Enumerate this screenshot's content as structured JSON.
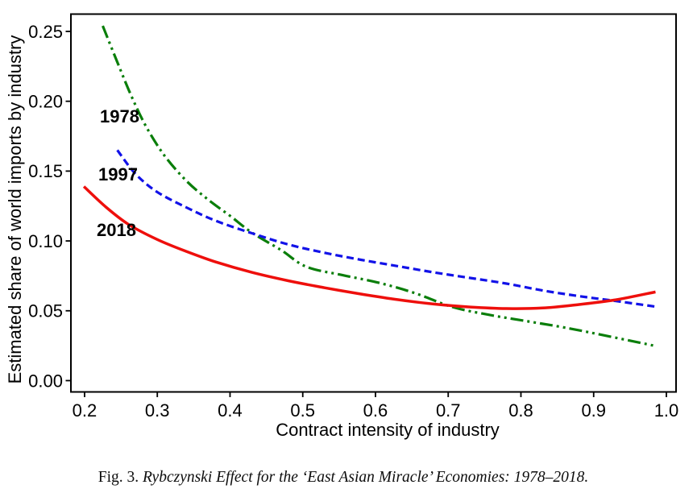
{
  "figure": {
    "caption_prefix": "Fig. 3. ",
    "caption_title": "Rybczynski Effect for the ‘East Asian Miracle’ Economies: 1978–2018."
  },
  "chart_data": {
    "type": "line",
    "title": "",
    "xlabel": "Contract intensity of industry",
    "ylabel": "Estimated share of world imports by industry",
    "xlim": [
      0.1812,
      1.0133
    ],
    "ylim": [
      -0.0081,
      0.2624
    ],
    "grid": false,
    "legend_position": "inline colored year labels inside plot, upper left",
    "x_ticks": [
      0.2,
      0.3,
      0.4,
      0.5,
      0.6,
      0.7,
      0.8,
      0.9,
      1.0
    ],
    "x_tick_labels": [
      "0.2",
      "0.3",
      "0.4",
      "0.5",
      "0.6",
      "0.7",
      "0.8",
      "0.9",
      "1.0"
    ],
    "y_ticks": [
      0.0,
      0.05,
      0.1,
      0.15,
      0.2,
      0.25
    ],
    "y_tick_labels": [
      "0.00",
      "0.05",
      "0.10",
      "0.15",
      "0.20",
      "0.25"
    ],
    "series": [
      {
        "name": "1978",
        "color": "#0a7e0a",
        "line_style": "dash-dot-dot",
        "dash": "16 5 3 5 3 5",
        "width": 3.2,
        "points": [
          [
            0.225,
            0.254
          ],
          [
            0.245,
            0.228
          ],
          [
            0.265,
            0.203
          ],
          [
            0.285,
            0.1815
          ],
          [
            0.31,
            0.161
          ],
          [
            0.34,
            0.143
          ],
          [
            0.37,
            0.1295
          ],
          [
            0.4,
            0.118
          ],
          [
            0.43,
            0.106
          ],
          [
            0.47,
            0.0935
          ],
          [
            0.505,
            0.0815
          ],
          [
            0.555,
            0.0755
          ],
          [
            0.605,
            0.07
          ],
          [
            0.655,
            0.0625
          ],
          [
            0.705,
            0.0528
          ],
          [
            0.755,
            0.0472
          ],
          [
            0.805,
            0.0428
          ],
          [
            0.86,
            0.038
          ],
          [
            0.92,
            0.0318
          ],
          [
            0.985,
            0.0248
          ]
        ]
      },
      {
        "name": "1997",
        "color": "#1212e8",
        "line_style": "dashed",
        "dash": "9 5",
        "width": 3.2,
        "points": [
          [
            0.245,
            0.165
          ],
          [
            0.27,
            0.148
          ],
          [
            0.3,
            0.135
          ],
          [
            0.34,
            0.124
          ],
          [
            0.38,
            0.1145
          ],
          [
            0.43,
            0.1055
          ],
          [
            0.48,
            0.0975
          ],
          [
            0.53,
            0.0915
          ],
          [
            0.58,
            0.0865
          ],
          [
            0.63,
            0.082
          ],
          [
            0.68,
            0.0775
          ],
          [
            0.73,
            0.0735
          ],
          [
            0.78,
            0.0695
          ],
          [
            0.83,
            0.0645
          ],
          [
            0.88,
            0.0605
          ],
          [
            0.93,
            0.057
          ],
          [
            0.985,
            0.053
          ]
        ]
      },
      {
        "name": "2018",
        "color": "#ee0f0c",
        "line_style": "solid",
        "dash": "",
        "width": 3.5,
        "points": [
          [
            0.199,
            0.139
          ],
          [
            0.23,
            0.124
          ],
          [
            0.26,
            0.112
          ],
          [
            0.3,
            0.101
          ],
          [
            0.34,
            0.0925
          ],
          [
            0.38,
            0.085
          ],
          [
            0.43,
            0.0775
          ],
          [
            0.48,
            0.0715
          ],
          [
            0.53,
            0.0665
          ],
          [
            0.58,
            0.062
          ],
          [
            0.63,
            0.058
          ],
          [
            0.68,
            0.0548
          ],
          [
            0.73,
            0.0527
          ],
          [
            0.78,
            0.0516
          ],
          [
            0.83,
            0.052
          ],
          [
            0.88,
            0.0545
          ],
          [
            0.93,
            0.0578
          ],
          [
            0.985,
            0.0635
          ]
        ]
      }
    ]
  }
}
